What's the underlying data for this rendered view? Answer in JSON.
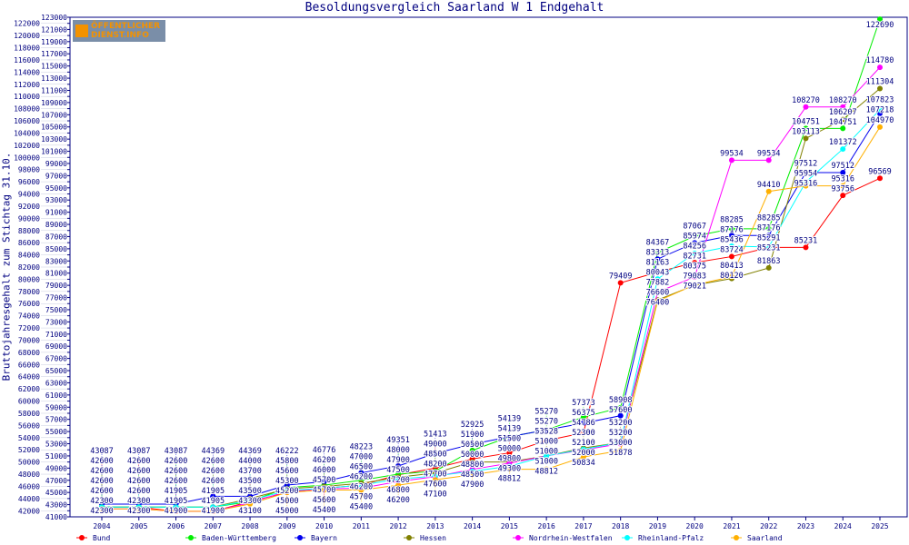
{
  "logo_text": "ÖFFENTLICHER DIENST.INFO",
  "chart_data": {
    "type": "line",
    "title": "Besoldungsvergleich Saarland W 1 Endgehalt",
    "xlabel": "",
    "ylabel": "Bruttojahresgehalt zum Stichtag 31.10.",
    "ylim": [
      41000,
      123000
    ],
    "ytick_step": 1000,
    "grid": false,
    "legend_position": "bottom",
    "x": [
      2004,
      2005,
      2006,
      2007,
      2008,
      2009,
      2010,
      2011,
      2012,
      2013,
      2014,
      2015,
      2016,
      2017,
      2018,
      2019,
      2020,
      2021,
      2022,
      2023,
      2024,
      2025
    ],
    "series": [
      {
        "name": "Bund",
        "color": "#ff0000",
        "values": [
          42600,
          42600,
          41900,
          41900,
          43500,
          45000,
          45700,
          46200,
          47900,
          49000,
          50500,
          51500,
          53528,
          54786,
          79409,
          81163,
          82731,
          83724,
          85231,
          85231,
          93756,
          96569
        ]
      },
      {
        "name": "Baden-Württemberg",
        "color": "#00ee00",
        "values": [
          42600,
          42600,
          42600,
          42600,
          43500,
          45800,
          46200,
          47000,
          48000,
          48500,
          51900,
          54139,
          55270,
          57373,
          58908,
          84367,
          87067,
          88285,
          88285,
          104751,
          104751,
          122690
        ]
      },
      {
        "name": "Bayern",
        "color": "#0000ee",
        "values": [
          43087,
          43087,
          43087,
          44369,
          44369,
          46222,
          46776,
          48223,
          49351,
          51413,
          52925,
          54139,
          55270,
          56375,
          57600,
          83313,
          85974,
          87176,
          87176,
          97512,
          97512,
          107218
        ]
      },
      {
        "name": "Hessen",
        "color": "#808000",
        "values": [
          42600,
          42600,
          42600,
          42600,
          44000,
          45600,
          46000,
          46500,
          47500,
          48200,
          50000,
          50000,
          51000,
          52300,
          53200,
          76600,
          79021,
          80120,
          81863,
          103113,
          106207,
          111304
        ]
      },
      {
        "name": "Nordrhein-Westfalen",
        "color": "#ff00ff",
        "values": [
          42300,
          42300,
          41905,
          41905,
          43300,
          45200,
          45600,
          45700,
          46800,
          47600,
          48800,
          49800,
          51000,
          52000,
          53000,
          77882,
          80375,
          99534,
          99534,
          108270,
          108270,
          114780
        ]
      },
      {
        "name": "Rheinland-Pfalz",
        "color": "#00ffff",
        "values": [
          42600,
          42600,
          42600,
          42600,
          43700,
          45300,
          45700,
          46200,
          47200,
          47700,
          48500,
          49300,
          51000,
          52100,
          53200,
          80043,
          84256,
          85436,
          85291,
          95954,
          101372,
          107823
        ]
      },
      {
        "name": "Saarland",
        "color": "#ffb000",
        "values": [
          42300,
          42300,
          41905,
          41905,
          43100,
          45000,
          45400,
          45400,
          46200,
          47100,
          47900,
          48812,
          48812,
          50834,
          51878,
          76400,
          79083,
          80413,
          94410,
          95316,
          95316,
          104970
        ]
      }
    ]
  }
}
